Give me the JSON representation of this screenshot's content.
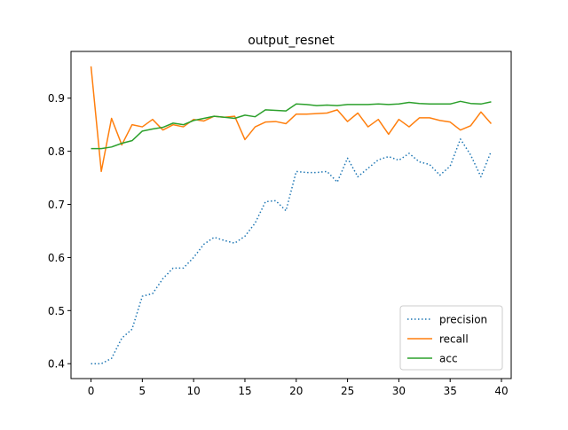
{
  "chart_data": {
    "type": "line",
    "title": "output_resnet",
    "xlabel": "",
    "ylabel": "",
    "xlim": [
      -1.95,
      40.95
    ],
    "ylim": [
      0.372,
      0.988
    ],
    "x_ticks": [
      0,
      5,
      10,
      15,
      20,
      25,
      30,
      35,
      40
    ],
    "y_ticks": [
      0.4,
      0.5,
      0.6,
      0.7,
      0.8,
      0.9
    ],
    "x_tick_labels": [
      "0",
      "5",
      "10",
      "15",
      "20",
      "25",
      "30",
      "35",
      "40"
    ],
    "y_tick_labels": [
      "0.4",
      "0.5",
      "0.6",
      "0.7",
      "0.8",
      "0.9"
    ],
    "grid": false,
    "legend_position": "lower-right",
    "x": [
      0,
      1,
      2,
      3,
      4,
      5,
      6,
      7,
      8,
      9,
      10,
      11,
      12,
      13,
      14,
      15,
      16,
      17,
      18,
      19,
      20,
      21,
      22,
      23,
      24,
      25,
      26,
      27,
      28,
      29,
      30,
      31,
      32,
      33,
      34,
      35,
      36,
      37,
      38,
      39
    ],
    "series": [
      {
        "name": "precision",
        "color": "#1f77b4",
        "style": "dotted",
        "values": [
          0.4,
          0.4,
          0.41,
          0.448,
          0.465,
          0.527,
          0.532,
          0.56,
          0.58,
          0.58,
          0.6,
          0.625,
          0.638,
          0.632,
          0.627,
          0.64,
          0.665,
          0.705,
          0.707,
          0.688,
          0.762,
          0.76,
          0.76,
          0.762,
          0.742,
          0.787,
          0.752,
          0.768,
          0.784,
          0.79,
          0.783,
          0.796,
          0.78,
          0.775,
          0.755,
          0.772,
          0.823,
          0.793,
          0.752,
          0.8
        ]
      },
      {
        "name": "recall",
        "color": "#ff7f0e",
        "style": "solid",
        "values": [
          0.96,
          0.762,
          0.862,
          0.812,
          0.85,
          0.846,
          0.86,
          0.84,
          0.85,
          0.846,
          0.86,
          0.857,
          0.866,
          0.864,
          0.866,
          0.822,
          0.846,
          0.855,
          0.856,
          0.852,
          0.87,
          0.87,
          0.871,
          0.872,
          0.878,
          0.856,
          0.872,
          0.846,
          0.86,
          0.832,
          0.86,
          0.846,
          0.863,
          0.863,
          0.858,
          0.855,
          0.84,
          0.848,
          0.874,
          0.852
        ]
      },
      {
        "name": "acc",
        "color": "#2ca02c",
        "style": "solid",
        "values": [
          0.805,
          0.805,
          0.808,
          0.815,
          0.82,
          0.838,
          0.842,
          0.845,
          0.853,
          0.85,
          0.858,
          0.862,
          0.866,
          0.864,
          0.862,
          0.868,
          0.865,
          0.878,
          0.877,
          0.876,
          0.889,
          0.888,
          0.886,
          0.887,
          0.886,
          0.888,
          0.888,
          0.888,
          0.889,
          0.888,
          0.889,
          0.892,
          0.89,
          0.889,
          0.889,
          0.889,
          0.894,
          0.89,
          0.889,
          0.893
        ]
      }
    ]
  }
}
